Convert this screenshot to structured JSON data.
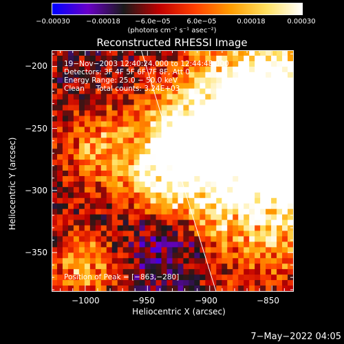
{
  "chart_data": {
    "type": "heatmap",
    "title": "Reconstructed RHESSI Image",
    "xlabel": "Heliocentric X (arcsec)",
    "ylabel": "Heliocentric Y (arcsec)",
    "xlim": [
      -1027,
      -833
    ],
    "ylim": [
      -381,
      -187
    ],
    "x_ticks": [
      -1000,
      -950,
      -900,
      -850
    ],
    "x_tick_labels": [
      "−1000",
      "−950",
      "−900",
      "−850"
    ],
    "y_ticks": [
      -200,
      -250,
      -300,
      -350
    ],
    "y_tick_labels": [
      "−200",
      "−250",
      "−300",
      "−350"
    ],
    "colorbar": {
      "range": [
        -0.0003,
        0.0003
      ],
      "tick_labels": [
        "−0.00030",
        "−0.00018",
        "−6.0e−05",
        "6.0e−05",
        "0.00018",
        "0.00030"
      ],
      "unit": "(photons cm⁻² s⁻¹ asec⁻²)",
      "colors": [
        "#0000ff",
        "#6a00c8",
        "#1a1a1a",
        "#c00000",
        "#ff4000",
        "#ff9d00",
        "#ffe060",
        "#ffffff"
      ]
    },
    "annotations": {
      "time": "19−Nov−2003 12:40:24.000 to 12:44:48.000",
      "detectors": "Detectors: 3F 4F 5F 6F 7F 8F, Att 0",
      "energy": "Energy Range: 25.0 − 50.0 keV",
      "clean": "Clean     Total counts: 3.24E+03",
      "position": "Position of Peak = [−863,−280]"
    },
    "peak": {
      "x": -863,
      "y": -280
    },
    "limb_line": {
      "x_top": -955,
      "x_bottom": -895
    }
  },
  "footer": {
    "date": "7−May−2022 04:05"
  }
}
